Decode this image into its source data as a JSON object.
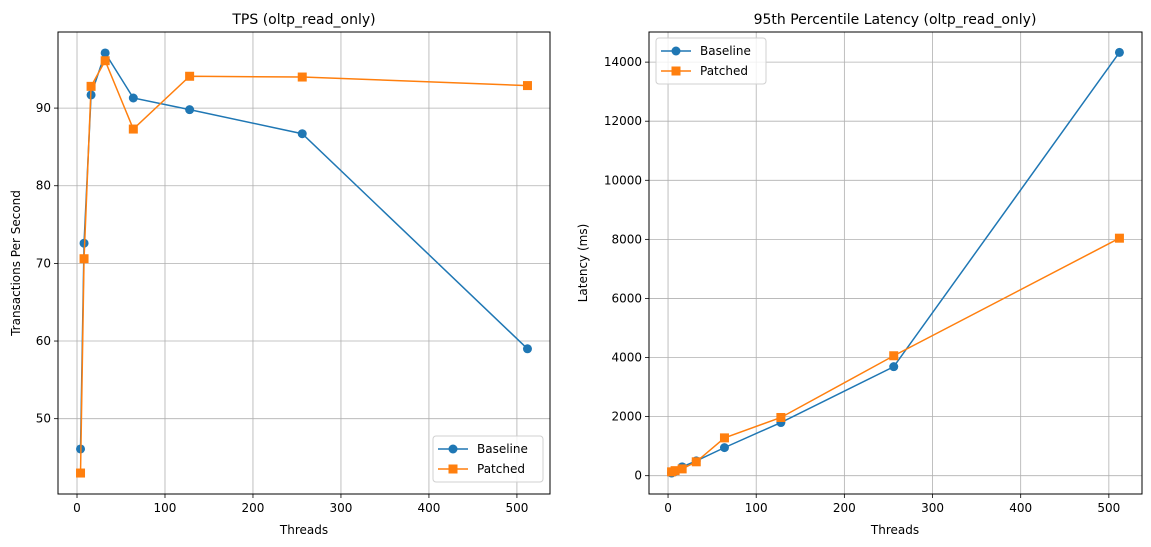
{
  "chart_data": [
    {
      "type": "line",
      "title": "TPS (oltp_read_only)",
      "xlabel": "Threads",
      "ylabel": "Transactions Per Second",
      "xlim": [
        -21.6,
        537.6
      ],
      "ylim": [
        40.3,
        99.8
      ],
      "xticks": [
        0,
        100,
        200,
        300,
        400,
        500
      ],
      "yticks": [
        50,
        60,
        70,
        80,
        90
      ],
      "grid": true,
      "legend_position": "lower-right",
      "x": [
        4,
        8,
        16,
        32,
        64,
        128,
        256,
        512
      ],
      "series": [
        {
          "name": "Baseline",
          "marker": "circle",
          "color": "#1f77b4",
          "values": [
            46.1,
            72.6,
            91.7,
            97.1,
            91.3,
            89.8,
            86.7,
            59.0
          ]
        },
        {
          "name": "Patched",
          "marker": "square",
          "color": "#ff7f0e",
          "values": [
            43.0,
            70.6,
            92.8,
            96.1,
            87.3,
            94.1,
            94.0,
            92.9
          ]
        }
      ]
    },
    {
      "type": "line",
      "title": "95th Percentile Latency (oltp_read_only)",
      "xlabel": "Threads",
      "ylabel": "Latency (ms)",
      "xlim": [
        -21.6,
        537.6
      ],
      "ylim": [
        -620,
        15020
      ],
      "xticks": [
        0,
        100,
        200,
        300,
        400,
        500
      ],
      "yticks": [
        0,
        2000,
        4000,
        6000,
        8000,
        10000,
        12000,
        14000
      ],
      "grid": true,
      "legend_position": "upper-left",
      "x": [
        4,
        8,
        16,
        32,
        64,
        128,
        256,
        512
      ],
      "series": [
        {
          "name": "Baseline",
          "marker": "circle",
          "color": "#1f77b4",
          "values": [
            90,
            150,
            300,
            500,
            950,
            1800,
            3690,
            14330
          ]
        },
        {
          "name": "Patched",
          "marker": "square",
          "color": "#ff7f0e",
          "values": [
            130,
            170,
            230,
            470,
            1280,
            1970,
            4060,
            8040
          ]
        }
      ]
    }
  ]
}
